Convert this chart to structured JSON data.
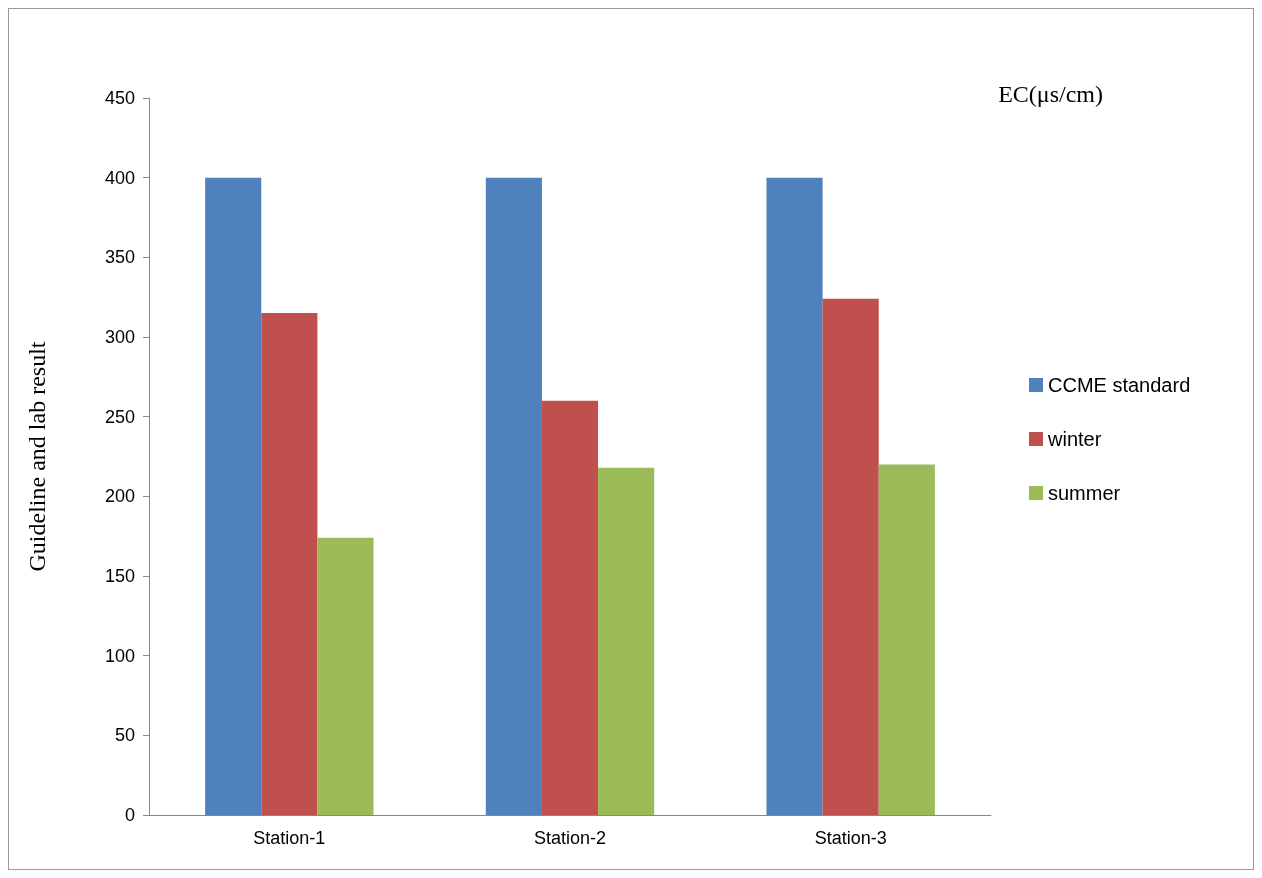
{
  "chart_data": {
    "type": "bar",
    "title": "EC(μs/cm)",
    "ylabel": "Guideline and lab result",
    "categories": [
      "Station-1",
      "Station-2",
      "Station-3"
    ],
    "series": [
      {
        "name": "CCME standard",
        "color": "#4f81bd",
        "values": [
          400,
          400,
          400
        ]
      },
      {
        "name": "winter",
        "color": "#c0504d",
        "values": [
          315,
          260,
          324
        ]
      },
      {
        "name": "summer",
        "color": "#9bbb59",
        "values": [
          174,
          218,
          220
        ]
      }
    ],
    "ylim": [
      0,
      450
    ],
    "yticks": [
      0,
      50,
      100,
      150,
      200,
      250,
      300,
      350,
      400,
      450
    ],
    "grid": false,
    "legend": "right"
  }
}
